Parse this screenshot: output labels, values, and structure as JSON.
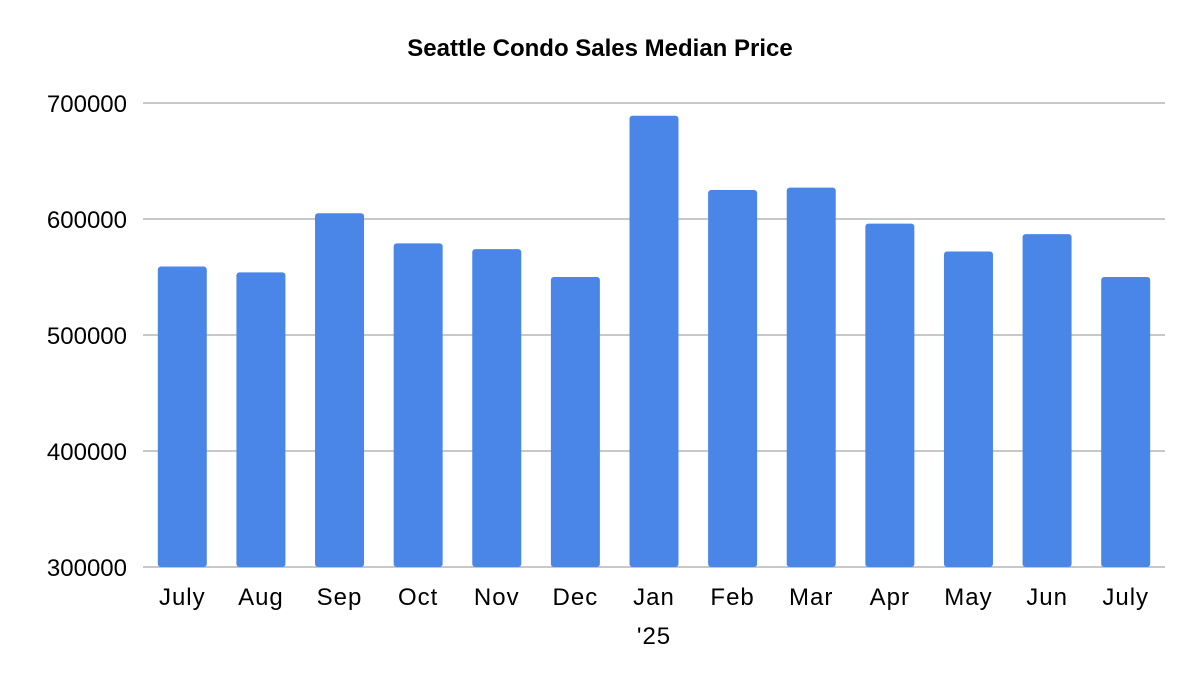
{
  "chart_data": {
    "type": "bar",
    "title": "Seattle Condo Sales Median Price",
    "xlabel": "",
    "ylabel": "",
    "categories": [
      "July",
      "Aug",
      "Sep",
      "Oct",
      "Nov",
      "Dec",
      "Jan",
      "Feb",
      "Mar",
      "Apr",
      "May",
      "Jun",
      "July"
    ],
    "category_sublabels": [
      "",
      "",
      "",
      "",
      "",
      "",
      "'25",
      "",
      "",
      "",
      "",
      "",
      ""
    ],
    "values": [
      559000,
      554000,
      605000,
      579000,
      574000,
      550000,
      689000,
      625000,
      627000,
      596000,
      572000,
      587000,
      550000
    ],
    "ylim": [
      300000,
      700000
    ],
    "yticks": [
      "300000",
      "400000",
      "500000",
      "600000",
      "700000"
    ],
    "grid": true,
    "legend": "none",
    "bar_color": "#4a86e8"
  }
}
